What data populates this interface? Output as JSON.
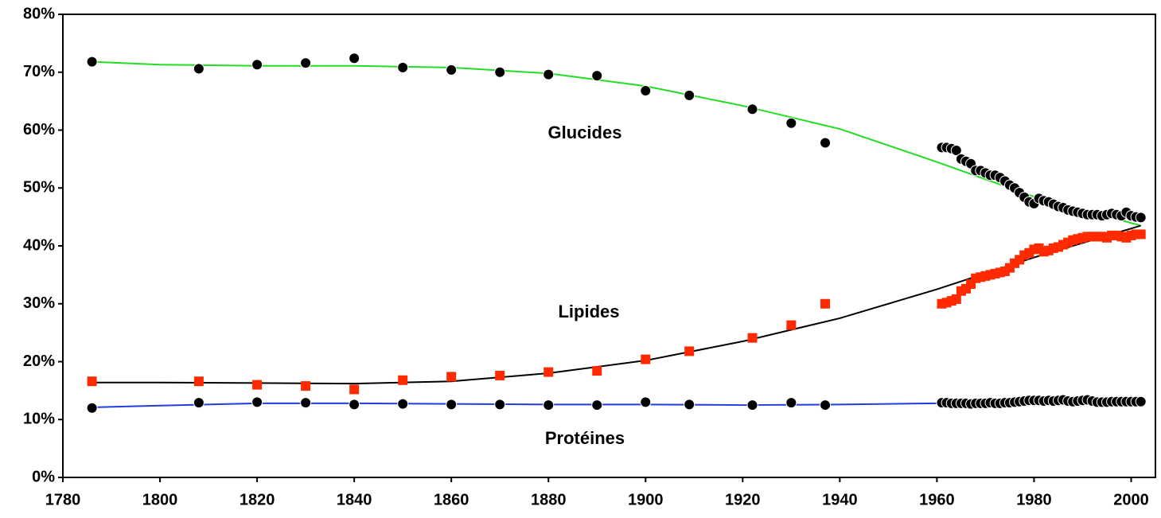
{
  "chart_data": {
    "type": "scatter",
    "xlim": [
      1780,
      2005
    ],
    "xticks": [
      1780,
      1800,
      1820,
      1840,
      1860,
      1880,
      1900,
      1920,
      1940,
      1960,
      1980,
      2000
    ],
    "ylim": [
      0,
      80
    ],
    "yticks": [
      {
        "value": 0,
        "label": "0%"
      },
      {
        "value": 10,
        "label": "10%"
      },
      {
        "value": 20,
        "label": "20%"
      },
      {
        "value": 30,
        "label": "30%"
      },
      {
        "value": 40,
        "label": "40%"
      },
      {
        "value": 50,
        "label": "50%"
      },
      {
        "value": 60,
        "label": "60%"
      },
      {
        "value": 70,
        "label": "70%"
      },
      {
        "value": 80,
        "label": "80%"
      }
    ],
    "series": [
      {
        "name": "Glucides",
        "mode": "markers",
        "marker": "circle",
        "color": "#000000",
        "x": [
          1786,
          1808,
          1820,
          1830,
          1840,
          1850,
          1860,
          1870,
          1880,
          1890,
          1900,
          1909,
          1922,
          1930,
          1937,
          1961,
          1962,
          1963,
          1964,
          1965,
          1966,
          1967,
          1968,
          1969,
          1970,
          1971,
          1972,
          1973,
          1974,
          1975,
          1976,
          1977,
          1978,
          1979,
          1980,
          1981,
          1982,
          1983,
          1984,
          1985,
          1986,
          1987,
          1988,
          1989,
          1990,
          1991,
          1992,
          1993,
          1994,
          1995,
          1996,
          1997,
          1998,
          1999,
          2000,
          2001,
          2002
        ],
        "values": [
          71.8,
          70.6,
          71.3,
          71.6,
          72.4,
          70.8,
          70.4,
          70.0,
          69.6,
          69.4,
          66.8,
          66.0,
          63.6,
          61.2,
          57.8,
          57.0,
          57.0,
          56.8,
          56.5,
          55.0,
          54.6,
          54.2,
          53.0,
          53.0,
          52.6,
          52.2,
          52.2,
          51.8,
          51.2,
          50.5,
          50.0,
          49.2,
          48.4,
          47.6,
          47.3,
          48.2,
          47.8,
          47.6,
          47.2,
          46.8,
          46.6,
          46.2,
          46.0,
          45.8,
          45.6,
          45.4,
          45.4,
          45.4,
          45.2,
          45.4,
          45.6,
          45.4,
          45.2,
          45.8,
          45.2,
          45.0,
          44.9
        ]
      },
      {
        "name": "Lipides",
        "mode": "markers",
        "marker": "square",
        "color": "#ff2a00",
        "x": [
          1786,
          1808,
          1820,
          1830,
          1840,
          1850,
          1860,
          1870,
          1880,
          1890,
          1900,
          1909,
          1922,
          1930,
          1937,
          1961,
          1962,
          1963,
          1964,
          1965,
          1966,
          1967,
          1968,
          1969,
          1970,
          1971,
          1972,
          1973,
          1974,
          1975,
          1976,
          1977,
          1978,
          1979,
          1980,
          1981,
          1982,
          1983,
          1984,
          1985,
          1986,
          1987,
          1988,
          1989,
          1990,
          1991,
          1992,
          1993,
          1994,
          1995,
          1996,
          1997,
          1998,
          1999,
          2000,
          2001,
          2002
        ],
        "values": [
          16.6,
          16.6,
          16.0,
          15.8,
          15.2,
          16.8,
          17.4,
          17.6,
          18.2,
          18.4,
          20.4,
          21.8,
          24.1,
          26.3,
          30.0,
          30.0,
          30.2,
          30.5,
          30.8,
          32.2,
          32.6,
          33.4,
          34.4,
          34.6,
          34.8,
          35.0,
          35.2,
          35.4,
          35.6,
          36.2,
          37.0,
          37.6,
          38.4,
          38.8,
          39.4,
          39.6,
          39.0,
          39.2,
          39.6,
          39.8,
          40.2,
          40.6,
          41.0,
          41.2,
          41.4,
          41.6,
          41.6,
          41.6,
          41.6,
          41.4,
          41.8,
          41.8,
          41.6,
          41.4,
          41.8,
          42.0,
          42.0
        ]
      },
      {
        "name": "Protéines",
        "mode": "markers",
        "marker": "circle",
        "color": "#000000",
        "x": [
          1786,
          1808,
          1820,
          1830,
          1840,
          1850,
          1860,
          1870,
          1880,
          1890,
          1900,
          1909,
          1922,
          1930,
          1937,
          1961,
          1962,
          1963,
          1964,
          1965,
          1966,
          1967,
          1968,
          1969,
          1970,
          1971,
          1972,
          1973,
          1974,
          1975,
          1976,
          1977,
          1978,
          1979,
          1980,
          1981,
          1982,
          1983,
          1984,
          1985,
          1986,
          1987,
          1988,
          1989,
          1990,
          1991,
          1992,
          1993,
          1994,
          1995,
          1996,
          1997,
          1998,
          1999,
          2000,
          2001,
          2002
        ],
        "values": [
          12.0,
          12.9,
          13.0,
          12.9,
          12.6,
          12.7,
          12.6,
          12.6,
          12.5,
          12.5,
          13.0,
          12.6,
          12.5,
          12.9,
          12.5,
          12.9,
          12.9,
          12.8,
          12.8,
          12.8,
          12.8,
          12.7,
          12.8,
          12.8,
          12.8,
          12.9,
          12.8,
          12.8,
          12.9,
          12.9,
          13.0,
          13.1,
          13.2,
          13.3,
          13.3,
          13.3,
          13.2,
          13.3,
          13.2,
          13.3,
          13.4,
          13.2,
          13.1,
          13.2,
          13.3,
          13.4,
          13.2,
          13.0,
          13.0,
          13.0,
          13.1,
          13.1,
          13.1,
          13.1,
          13.1,
          13.1,
          13.1
        ]
      },
      {
        "mode": "line",
        "color": "#22dd22",
        "x": [
          1786,
          1800,
          1820,
          1840,
          1860,
          1880,
          1900,
          1920,
          1940,
          1960,
          1980,
          2002
        ],
        "values": [
          71.8,
          71.3,
          71.1,
          71.1,
          70.8,
          69.8,
          67.6,
          64.2,
          60.2,
          54.5,
          48.5,
          43.5
        ]
      },
      {
        "mode": "line",
        "color": "#000000",
        "x": [
          1786,
          1800,
          1820,
          1840,
          1860,
          1880,
          1900,
          1920,
          1940,
          1960,
          1980,
          2002
        ],
        "values": [
          16.4,
          16.4,
          16.3,
          16.2,
          16.6,
          18.0,
          20.2,
          23.5,
          27.5,
          32.5,
          38.0,
          43.5
        ]
      },
      {
        "mode": "line",
        "color": "#1f3fdd",
        "x": [
          1786,
          1800,
          1820,
          1840,
          1860,
          1880,
          1900,
          1920,
          1940,
          1960,
          1980,
          2002
        ],
        "values": [
          12.1,
          12.4,
          12.8,
          12.8,
          12.7,
          12.6,
          12.6,
          12.5,
          12.6,
          12.8,
          13.1,
          13.2
        ]
      }
    ]
  }
}
